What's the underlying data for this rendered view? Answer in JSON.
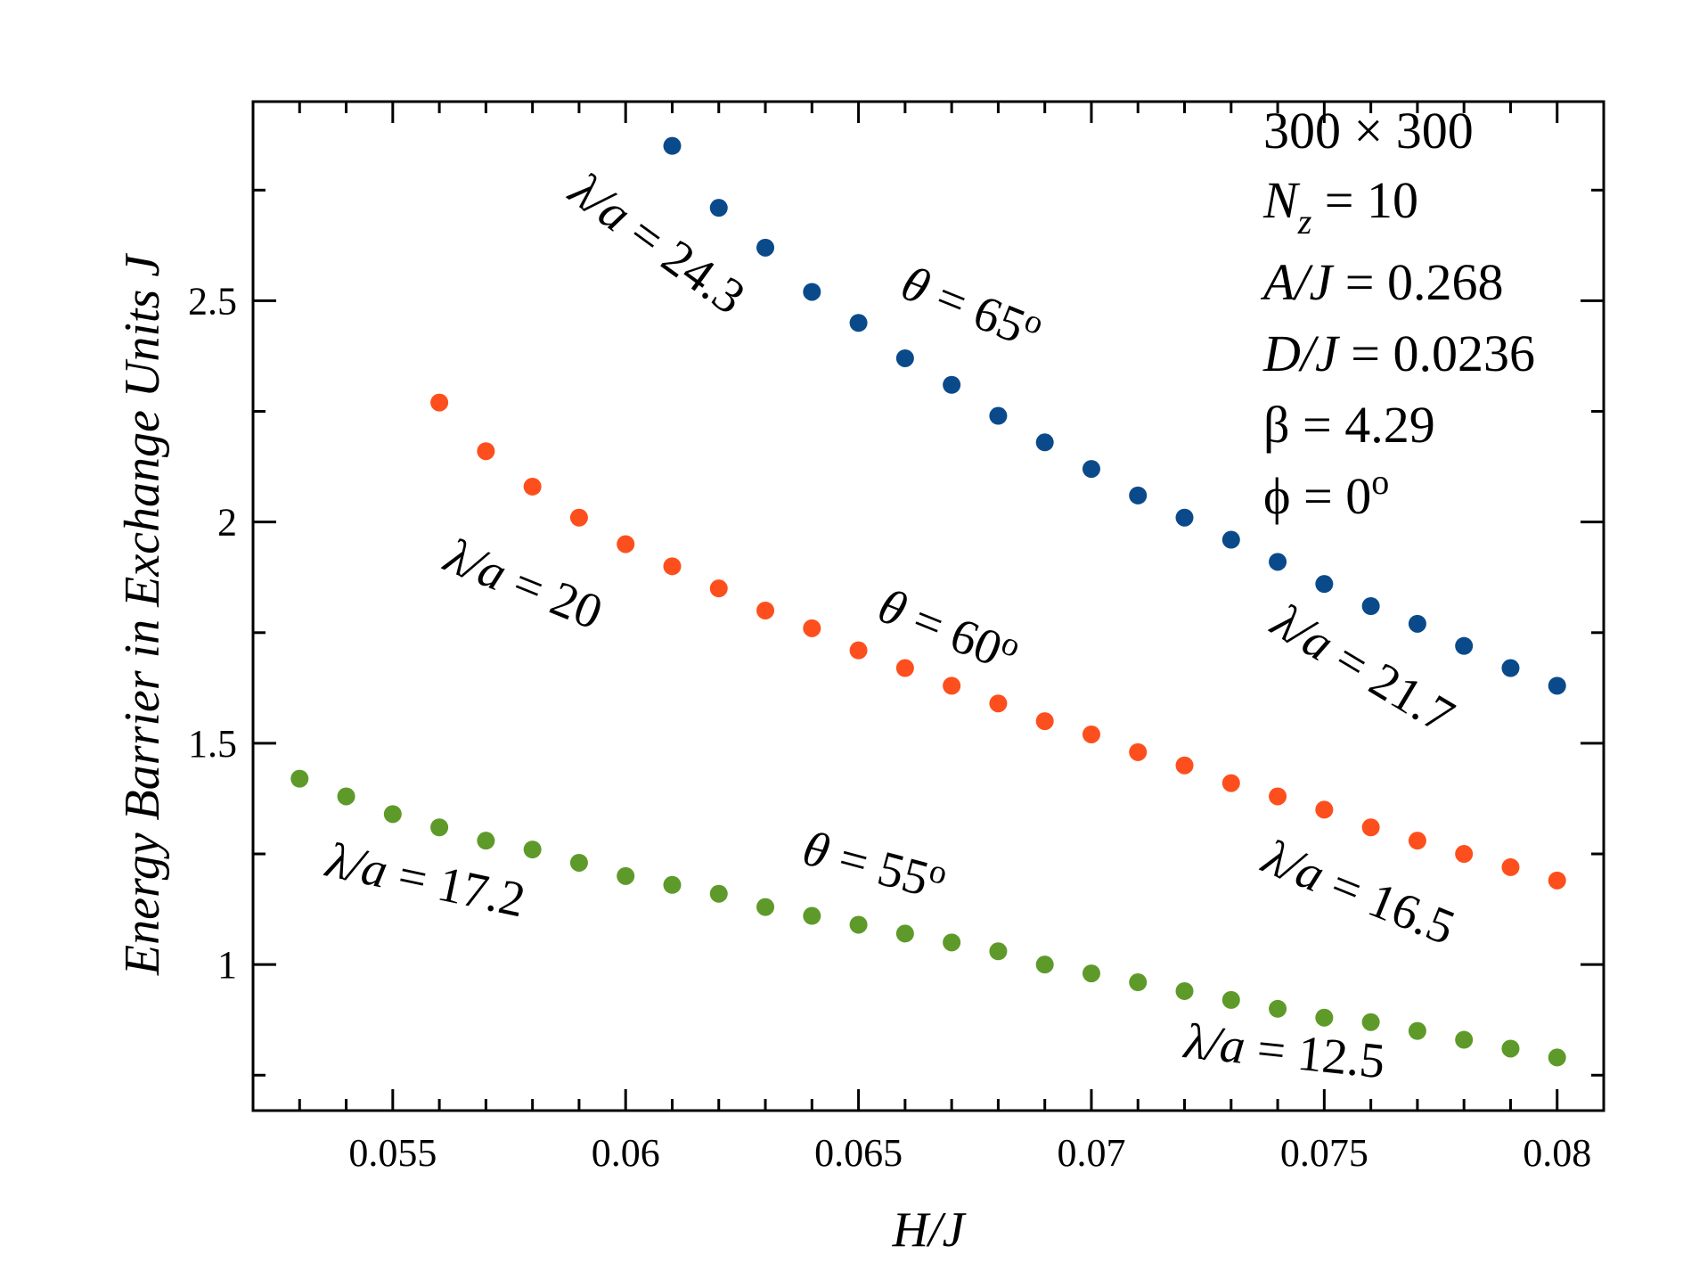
{
  "chart_data": {
    "type": "scatter",
    "xlabel": "H/J",
    "ylabel": "Energy Barrier in Exchange Units J",
    "xlim": [
      0.052,
      0.081
    ],
    "ylim": [
      0.67,
      2.95
    ],
    "xticks": [
      0.055,
      0.06,
      0.065,
      0.07,
      0.075,
      0.08
    ],
    "xtick_labels": [
      "0.055",
      "0.06",
      "0.065",
      "0.07",
      "0.075",
      "0.08"
    ],
    "yticks": [
      1,
      1.5,
      2,
      2.5
    ],
    "ytick_labels": [
      "1",
      "1.5",
      "2",
      "2.5"
    ],
    "series": [
      {
        "name": "θ = 65°",
        "color": "#0b4a8a",
        "x": [
          0.061,
          0.062,
          0.063,
          0.064,
          0.065,
          0.066,
          0.067,
          0.068,
          0.069,
          0.07,
          0.071,
          0.072,
          0.073,
          0.074,
          0.075,
          0.076,
          0.077,
          0.078,
          0.079,
          0.08
        ],
        "y": [
          2.85,
          2.71,
          2.62,
          2.52,
          2.45,
          2.37,
          2.31,
          2.24,
          2.18,
          2.12,
          2.06,
          2.01,
          1.96,
          1.91,
          1.86,
          1.81,
          1.77,
          1.72,
          1.67,
          1.63
        ]
      },
      {
        "name": "θ = 60°",
        "color": "#fd4f1d",
        "x": [
          0.056,
          0.057,
          0.058,
          0.059,
          0.06,
          0.061,
          0.062,
          0.063,
          0.064,
          0.065,
          0.066,
          0.067,
          0.068,
          0.069,
          0.07,
          0.071,
          0.072,
          0.073,
          0.074,
          0.075,
          0.076,
          0.077,
          0.078,
          0.079,
          0.08
        ],
        "y": [
          2.27,
          2.16,
          2.08,
          2.01,
          1.95,
          1.9,
          1.85,
          1.8,
          1.76,
          1.71,
          1.67,
          1.63,
          1.59,
          1.55,
          1.52,
          1.48,
          1.45,
          1.41,
          1.38,
          1.35,
          1.31,
          1.28,
          1.25,
          1.22,
          1.19
        ]
      },
      {
        "name": "θ = 55°",
        "color": "#5e9a2a",
        "x": [
          0.053,
          0.054,
          0.055,
          0.056,
          0.057,
          0.058,
          0.059,
          0.06,
          0.061,
          0.062,
          0.063,
          0.064,
          0.065,
          0.066,
          0.067,
          0.068,
          0.069,
          0.07,
          0.071,
          0.072,
          0.073,
          0.074,
          0.075,
          0.076,
          0.077,
          0.078,
          0.079,
          0.08
        ],
        "y": [
          1.42,
          1.38,
          1.34,
          1.31,
          1.28,
          1.26,
          1.23,
          1.2,
          1.18,
          1.16,
          1.13,
          1.11,
          1.09,
          1.07,
          1.05,
          1.03,
          1.0,
          0.98,
          0.96,
          0.94,
          0.92,
          0.9,
          0.88,
          0.87,
          0.85,
          0.83,
          0.81,
          0.79
        ]
      }
    ],
    "annotations": [
      {
        "name": "theta-65",
        "var": "θ",
        "eq": " = 65",
        "sup": "o"
      },
      {
        "name": "theta-60",
        "var": "θ",
        "eq": " = 60",
        "sup": "o"
      },
      {
        "name": "theta-55",
        "var": "θ",
        "eq": " = 55",
        "sup": "o"
      },
      {
        "name": "lambda-24-3",
        "var": "λ/a",
        "eq": " = 24.3"
      },
      {
        "name": "lambda-21-7",
        "var": "λ/a",
        "eq": " = 21.7"
      },
      {
        "name": "lambda-20",
        "var": "λ/a",
        "eq": " = 20"
      },
      {
        "name": "lambda-16-5",
        "var": "λ/a",
        "eq": " = 16.5"
      },
      {
        "name": "lambda-17-2",
        "var": "λ/a",
        "eq": " = 17.2"
      },
      {
        "name": "lambda-12-5",
        "var": "λ/a",
        "eq": " = 12.5"
      }
    ],
    "parameters": {
      "grid": "300 × 300",
      "nz_var": "N",
      "nz_sub": "z",
      "nz_eq": " = 10",
      "a_var": "A/J",
      "a_eq": " = 0.268",
      "d_var": "D/J",
      "d_eq": " =  0.0236",
      "beta": "β = 4.29",
      "phi": "ϕ = 0",
      "phi_sup": "o"
    },
    "grid": false,
    "legend": "none"
  }
}
